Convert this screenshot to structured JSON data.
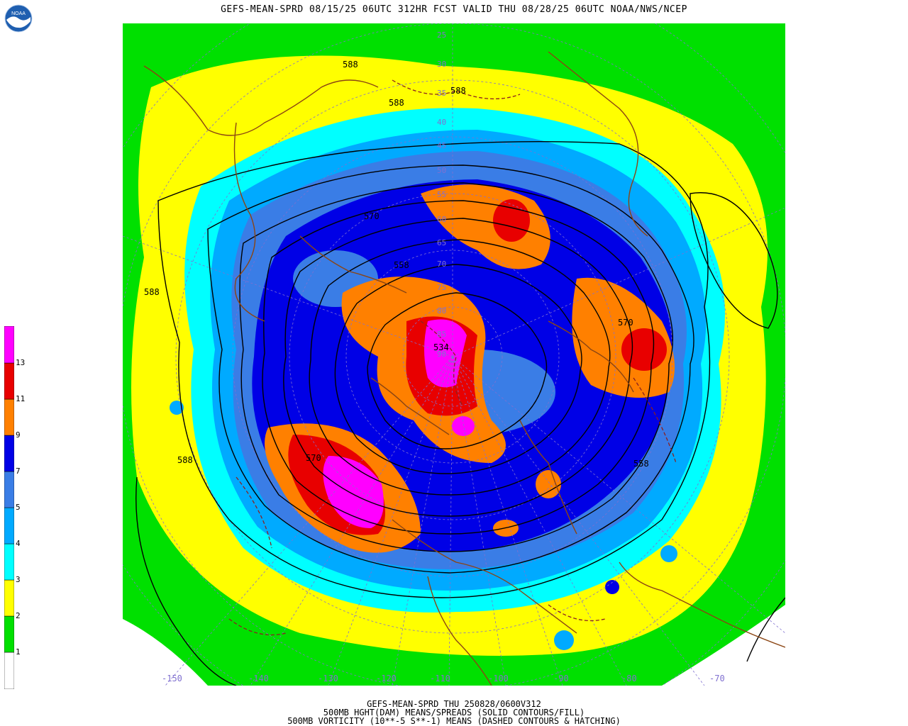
{
  "header": {
    "title": "GEFS-MEAN-SPRD 08/15/25 06UTC 312HR FCST VALID THU 08/28/25 06UTC NOAA/NWS/NCEP"
  },
  "logo": {
    "label": "NOAA",
    "icon": "noaa-logo-icon"
  },
  "colorbar": {
    "labels": [
      "1",
      "2",
      "3",
      "4",
      "5",
      "7",
      "9",
      "11",
      "13"
    ],
    "colors": [
      "#ffffff",
      "#00e000",
      "#ffff00",
      "#00ffff",
      "#00aaff",
      "#3a7de6",
      "#0000e6",
      "#ff8000",
      "#e80000",
      "#ff00ff"
    ]
  },
  "contour_labels": [
    "588",
    "588",
    "588",
    "570",
    "558",
    "570",
    "588",
    "570",
    "588",
    "534",
    "558"
  ],
  "lat_labels": [
    "25",
    "30",
    "35",
    "40",
    "45",
    "50",
    "55",
    "60",
    "65",
    "70",
    "75",
    "80",
    "85",
    "90"
  ],
  "lon_labels": [
    "-150",
    "-140",
    "-130",
    "-120",
    "-110",
    "-100",
    "-90",
    "-80",
    "-70"
  ],
  "footer": {
    "line1": "GEFS-MEAN-SPRD THU 250828/0600V312",
    "line2": "500MB HGHT(DAM) MEANS/SPREADS (SOLID CONTOURS/FILL)",
    "line3": "500MB VORTICITY (10**-5 S**-1) MEANS (DASHED CONTOURS & HATCHING)"
  }
}
